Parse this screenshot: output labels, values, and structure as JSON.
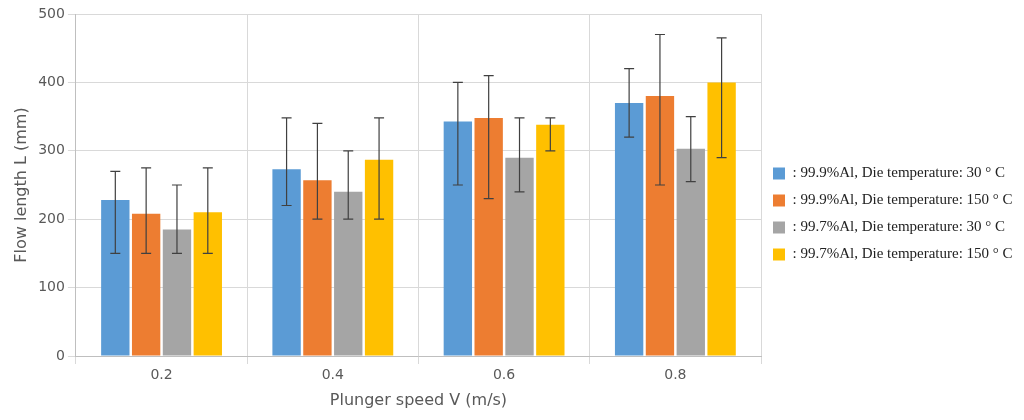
{
  "chart_data": {
    "type": "bar",
    "x_label": "Plunger speed V (m/s)",
    "y_label": "Flow length L (mm)",
    "categories": [
      "0.2",
      "0.4",
      "0.6",
      "0.8"
    ],
    "series": [
      {
        "name": ": 99.9%Al, Die temperature: 30 ° C",
        "color": "#5b9bd5",
        "values": [
          228,
          273,
          343,
          370
        ],
        "error_low": [
          150,
          220,
          250,
          320
        ],
        "error_high": [
          270,
          348,
          400,
          420
        ]
      },
      {
        "name": ": 99.9%Al, Die temperature: 150 ° C",
        "color": "#ed7d31",
        "values": [
          208,
          257,
          348,
          380
        ],
        "error_low": [
          150,
          200,
          230,
          250
        ],
        "error_high": [
          275,
          340,
          410,
          470
        ]
      },
      {
        "name": ": 99.7%Al, Die temperature: 30 ° C",
        "color": "#a5a5a5",
        "values": [
          185,
          240,
          290,
          303
        ],
        "error_low": [
          150,
          200,
          240,
          255
        ],
        "error_high": [
          250,
          300,
          348,
          350
        ]
      },
      {
        "name": ": 99.7%Al, Die temperature: 150 ° C",
        "color": "#ffc000",
        "values": [
          210,
          287,
          338,
          400
        ],
        "error_low": [
          150,
          200,
          300,
          290
        ],
        "error_high": [
          275,
          348,
          348,
          465
        ]
      }
    ],
    "ylim": [
      0,
      500
    ],
    "yticks": [
      0,
      100,
      200,
      300,
      400,
      500
    ],
    "grid": true,
    "legend": "right"
  }
}
